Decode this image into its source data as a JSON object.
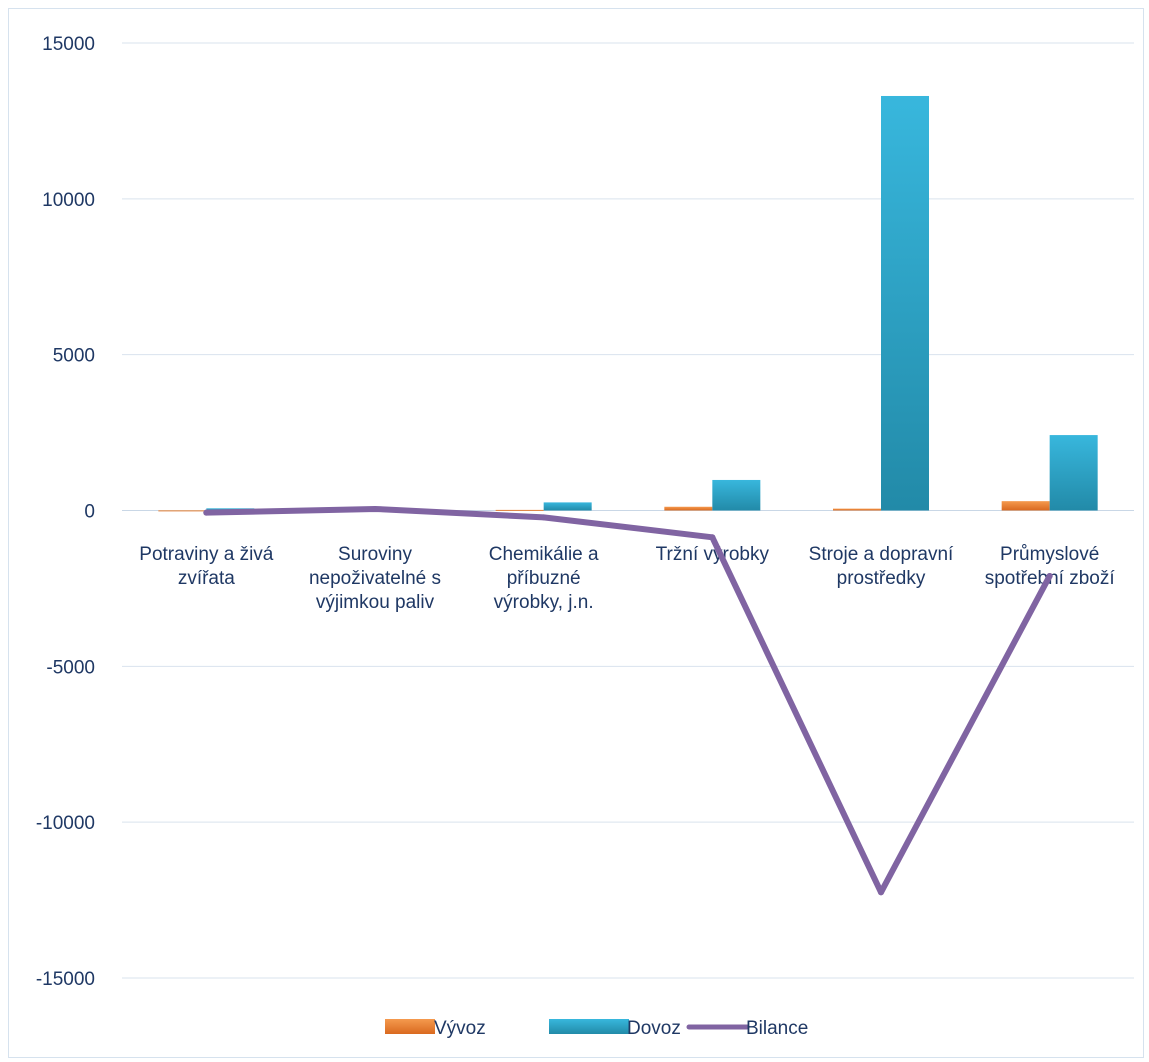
{
  "chart_data": {
    "type": "bar",
    "title": "",
    "xlabel": "",
    "ylabel": "",
    "ylim": [
      -15000,
      15000
    ],
    "yticks": [
      15000,
      10000,
      5000,
      0,
      -5000,
      -10000,
      -15000
    ],
    "grid": true,
    "legend_position": "bottom",
    "categories": [
      [
        "Potraviny a živá",
        "zvířata"
      ],
      [
        "Suroviny",
        "nepoživatelné s",
        "výjimkou paliv"
      ],
      [
        "Chemikálie a",
        "příbuzné",
        "výrobky, j.n."
      ],
      [
        "Tržní výrobky"
      ],
      [
        "Stroje a dopravní",
        "prostředky"
      ],
      [
        "Průmyslové",
        "spotřební zboží"
      ]
    ],
    "series": [
      {
        "name": "Vývoz",
        "kind": "bar",
        "color": "#ed7d31",
        "values": [
          5,
          10,
          20,
          120,
          60,
          300
        ]
      },
      {
        "name": "Dovoz",
        "kind": "bar",
        "color": "#2ea6cc",
        "values": [
          70,
          10,
          260,
          980,
          13300,
          2420
        ]
      },
      {
        "name": "Bilance",
        "kind": "line",
        "color": "#8064a2",
        "values": [
          -70,
          50,
          -220,
          -860,
          -12250,
          -2100
        ]
      }
    ]
  }
}
